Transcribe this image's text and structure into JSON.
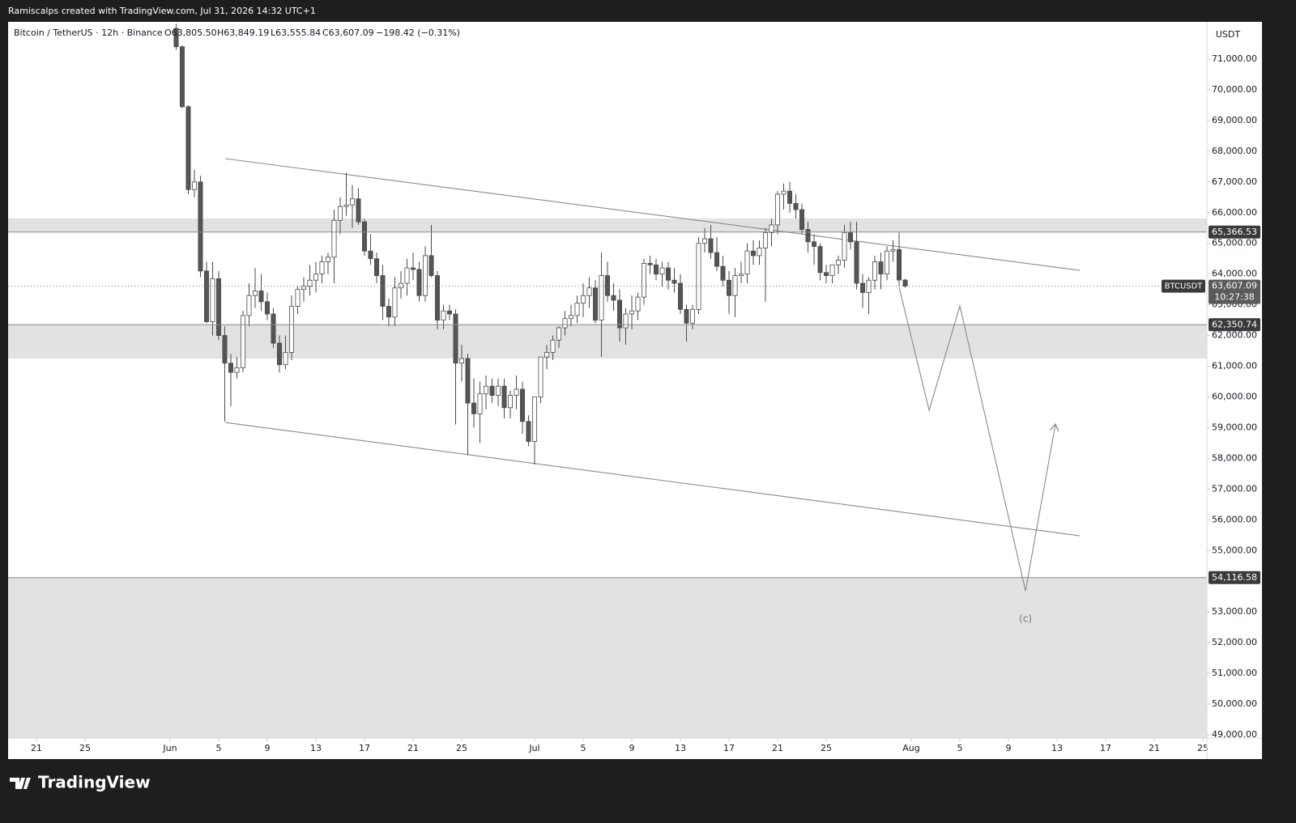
{
  "header": {
    "author_line": "Ramiscalps created with TradingView.com, Jul 31, 2026 14:32 UTC+1",
    "symbol": "Bitcoin / TetherUS · 12h · Binance",
    "ohlc": [
      "O63,805.50",
      "H63,849.19",
      "L63,555.84",
      "C63,607.09",
      "−198.42 (−0.31%)"
    ],
    "currency": "USDT"
  },
  "chart_data": {
    "type": "candlestick",
    "x": [
      32.5,
      33,
      33.5,
      34,
      34.5,
      35,
      35.5,
      36,
      36.5,
      37,
      37.5,
      38,
      38.5,
      39,
      39.5,
      40,
      40.5,
      41,
      41.5,
      42,
      42.5,
      43,
      43.5,
      44,
      44.5,
      45,
      45.5,
      46,
      46.5,
      47,
      47.5,
      48,
      48.5,
      49,
      49.5,
      50,
      50.5,
      51,
      51.5,
      52,
      52.5,
      53,
      53.5,
      54,
      54.5,
      55,
      55.5,
      56,
      56.5,
      57,
      57.5,
      58,
      58.5,
      59,
      59.5,
      60,
      60.5,
      61,
      61.5,
      62,
      62.5,
      63,
      63.5,
      64,
      64.5,
      65,
      65.5,
      66,
      66.5,
      67,
      67.5,
      68,
      68.5,
      69,
      69.5,
      70,
      70.5,
      71,
      71.5,
      72,
      72.5,
      73,
      73.5,
      74,
      74.5,
      75,
      75.5,
      76,
      76.5,
      77,
      77.5,
      78,
      78.5,
      79,
      79.5,
      80,
      80.5,
      81,
      81.5,
      82,
      82.5,
      83,
      83.5,
      84,
      84.5,
      85,
      85.5,
      86,
      86.5,
      87,
      87.5,
      88,
      88.5,
      89,
      89.5,
      90,
      90.5,
      91,
      91.5,
      92,
      92.5
    ],
    "open": [
      72000,
      71400,
      69450,
      66750,
      67000,
      64100,
      62450,
      63850,
      62000,
      61100,
      60800,
      60950,
      62650,
      63300,
      63450,
      63100,
      62700,
      61750,
      61050,
      61450,
      62950,
      63500,
      63600,
      63800,
      64000,
      64400,
      64550,
      65750,
      66200,
      66250,
      66450,
      65700,
      64750,
      64500,
      63950,
      62950,
      62600,
      63550,
      63700,
      64200,
      64150,
      63300,
      64600,
      63950,
      62500,
      62800,
      62700,
      61100,
      61250,
      59800,
      59450,
      60100,
      60350,
      60050,
      60350,
      59650,
      60050,
      60250,
      59200,
      58550,
      60000,
      61300,
      61450,
      61850,
      62250,
      62550,
      62650,
      63050,
      63300,
      63550,
      62500,
      63950,
      63300,
      63150,
      62250,
      62700,
      62800,
      63250,
      64350,
      64300,
      64000,
      64200,
      63800,
      63700,
      62850,
      62400,
      62850,
      65000,
      65150,
      64700,
      64250,
      63800,
      63300,
      63950,
      64000,
      64750,
      64600,
      64850,
      65350,
      65600,
      66600,
      66700,
      66300,
      66100,
      65450,
      65050,
      64900,
      64050,
      63950,
      64300,
      64450,
      65350,
      65050,
      63700,
      63400,
      63800,
      64400,
      64000,
      64750,
      64800,
      63805.5
    ],
    "high": [
      72150,
      71450,
      69500,
      67400,
      67200,
      64400,
      64400,
      64100,
      62300,
      61400,
      61300,
      62800,
      63700,
      64200,
      64000,
      63400,
      62900,
      62000,
      62000,
      63300,
      63600,
      63900,
      64300,
      64400,
      64600,
      64700,
      66100,
      66500,
      67300,
      66900,
      66800,
      65800,
      65300,
      64700,
      64300,
      63200,
      63900,
      64100,
      64500,
      64700,
      64400,
      64900,
      65600,
      64100,
      63000,
      63000,
      62850,
      61700,
      61400,
      60600,
      60500,
      60700,
      60600,
      60600,
      60600,
      60200,
      60700,
      60500,
      59400,
      60000,
      61300,
      61700,
      62000,
      62300,
      62800,
      63000,
      63300,
      63700,
      63900,
      63800,
      64700,
      64400,
      63700,
      63500,
      62900,
      63300,
      63400,
      64500,
      64600,
      64500,
      64400,
      64400,
      64200,
      64000,
      63000,
      63000,
      65200,
      65500,
      65600,
      65200,
      64600,
      64100,
      64200,
      64400,
      65000,
      65100,
      65100,
      65500,
      65800,
      66700,
      66950,
      67000,
      66600,
      66300,
      65700,
      65300,
      65000,
      64300,
      64300,
      64600,
      65600,
      65700,
      65700,
      64000,
      63900,
      64600,
      64700,
      64900,
      65100,
      65350,
      63849.19
    ],
    "low": [
      71300,
      69400,
      66600,
      66500,
      63900,
      62400,
      62000,
      61850,
      59200,
      59700,
      60600,
      60800,
      62300,
      62900,
      62800,
      62500,
      61600,
      60800,
      60900,
      61200,
      62700,
      63100,
      63300,
      63400,
      63700,
      64000,
      63700,
      65300,
      65900,
      65500,
      65600,
      64600,
      64300,
      63700,
      62500,
      62300,
      62300,
      63200,
      63300,
      63800,
      63100,
      63100,
      63900,
      62200,
      62200,
      62500,
      59100,
      60500,
      58100,
      59000,
      58500,
      59600,
      59800,
      59700,
      59300,
      59300,
      59600,
      58800,
      58400,
      57800,
      59800,
      60900,
      61200,
      61600,
      62000,
      62300,
      62400,
      62600,
      62900,
      62400,
      61300,
      63100,
      62800,
      61800,
      61700,
      62200,
      62500,
      63000,
      64000,
      63800,
      63600,
      63500,
      63400,
      62700,
      61800,
      62200,
      62700,
      64700,
      64500,
      64100,
      63600,
      62700,
      62600,
      63700,
      63700,
      64300,
      64300,
      63100,
      64900,
      65300,
      66100,
      66000,
      65800,
      65300,
      64700,
      64300,
      63800,
      63700,
      63700,
      64000,
      64200,
      64800,
      63500,
      62900,
      62700,
      63500,
      63500,
      63800,
      64400,
      63600,
      63555.84
    ],
    "close": [
      71400,
      69450,
      66750,
      67000,
      64100,
      62450,
      63850,
      62000,
      61100,
      60800,
      60950,
      62650,
      63300,
      63450,
      63100,
      62700,
      61750,
      61050,
      61450,
      62950,
      63500,
      63600,
      63800,
      64000,
      64400,
      64550,
      65750,
      66200,
      66250,
      66450,
      65700,
      64750,
      64500,
      63950,
      62950,
      62600,
      63550,
      63700,
      64200,
      64150,
      63300,
      64600,
      63950,
      62500,
      62800,
      62700,
      61100,
      61250,
      59800,
      59450,
      60100,
      60350,
      60050,
      60350,
      59650,
      60050,
      60250,
      59200,
      58550,
      60000,
      61300,
      61450,
      61850,
      62250,
      62550,
      62650,
      63050,
      63300,
      63550,
      62500,
      63950,
      63300,
      63150,
      62250,
      62700,
      62800,
      63250,
      64350,
      64300,
      64000,
      64200,
      63800,
      63700,
      62850,
      62400,
      62850,
      65000,
      65150,
      64700,
      64250,
      63800,
      63300,
      63950,
      64000,
      64750,
      64600,
      64850,
      65350,
      65600,
      66600,
      66700,
      66300,
      66100,
      65450,
      65050,
      64900,
      64050,
      63950,
      64300,
      64450,
      65350,
      65050,
      63700,
      63400,
      63800,
      64400,
      64000,
      64750,
      64800,
      63805.5,
      63607.09
    ],
    "colors": {
      "up": "#ffffff",
      "down": "#555555",
      "outline": "#4a4a4a"
    },
    "xlim": [
      18.67,
      117.33
    ],
    "xticks": [
      21,
      25,
      {
        "value": 32,
        "label": "Jun"
      },
      {
        "value": 36,
        "label": "5"
      },
      {
        "value": 40,
        "label": "9"
      },
      {
        "value": 44,
        "label": "13"
      },
      {
        "value": 48,
        "label": "17"
      },
      {
        "value": 52,
        "label": "21"
      },
      {
        "value": 56,
        "label": "25"
      },
      {
        "value": 62,
        "label": "Jul"
      },
      {
        "value": 66,
        "label": "5"
      },
      {
        "value": 70,
        "label": "9"
      },
      {
        "value": 74,
        "label": "13"
      },
      {
        "value": 78,
        "label": "17"
      },
      {
        "value": 82,
        "label": "21"
      },
      {
        "value": 86,
        "label": "25"
      },
      {
        "value": 93,
        "label": "Aug"
      },
      {
        "value": 97,
        "label": "5"
      },
      {
        "value": 101,
        "label": "9"
      },
      {
        "value": 105,
        "label": "13"
      },
      {
        "value": 109,
        "label": "17"
      },
      {
        "value": 113,
        "label": "21"
      },
      {
        "value": 117,
        "label": "25"
      }
    ],
    "ylim": [
      48894,
      72212
    ],
    "yticks": [
      {
        "value": 49000,
        "label": "49,000.00"
      },
      {
        "value": 50000,
        "label": "50,000.00"
      },
      {
        "value": 51000,
        "label": "51,000.00"
      },
      {
        "value": 52000,
        "label": "52,000.00"
      },
      {
        "value": 53000,
        "label": "53,000.00"
      },
      {
        "value": 55000,
        "label": "55,000.00"
      },
      {
        "value": 56000,
        "label": "56,000.00"
      },
      {
        "value": 57000,
        "label": "57,000.00"
      },
      {
        "value": 58000,
        "label": "58,000.00"
      },
      {
        "value": 59000,
        "label": "59,000.00"
      },
      {
        "value": 60000,
        "label": "60,000.00"
      },
      {
        "value": 61000,
        "label": "61,000.00"
      },
      {
        "value": 62000,
        "label": "62,000.00"
      },
      {
        "value": 63000,
        "label": "63,000.00"
      },
      {
        "value": 64000,
        "label": "64,000.00"
      },
      {
        "value": 65000,
        "label": "65,000.00"
      },
      {
        "value": 66000,
        "label": "66,000.00"
      },
      {
        "value": 67000,
        "label": "67,000.00"
      },
      {
        "value": 68000,
        "label": "68,000.00"
      },
      {
        "value": 69000,
        "label": "69,000.00"
      },
      {
        "value": 70000,
        "label": "70,000.00"
      },
      {
        "value": 71000,
        "label": "71,000.00"
      }
    ],
    "grid": false,
    "levels": [
      {
        "value": 65366.53,
        "label": "65,366.53"
      },
      {
        "value": 62350.74,
        "label": "62,350.74"
      },
      {
        "value": 54116.58,
        "label": "54,116.58"
      }
    ],
    "zones": [
      [
        65366.53,
        65810
      ],
      [
        61250,
        62350.74
      ],
      [
        48894,
        54116.58
      ]
    ],
    "last_price": {
      "value": 63607.09,
      "label": "63,607.09"
    },
    "countdown": "10:27:38",
    "symbol_tag": "BTCUSDT",
    "trendlines": [
      {
        "x": [
          36.53,
          106.87
        ],
        "y": [
          67759,
          64122
        ]
      },
      {
        "x": [
          36.53,
          106.87
        ],
        "y": [
          59169,
          55480
        ]
      }
    ],
    "projection": {
      "x": [
        92,
        94.47,
        97,
        102.4,
        104.87
      ],
      "y": [
        63569,
        59564,
        62963,
        53688,
        59116
      ]
    },
    "annotation": "(c)"
  },
  "footer": {
    "brand": "TradingView"
  }
}
